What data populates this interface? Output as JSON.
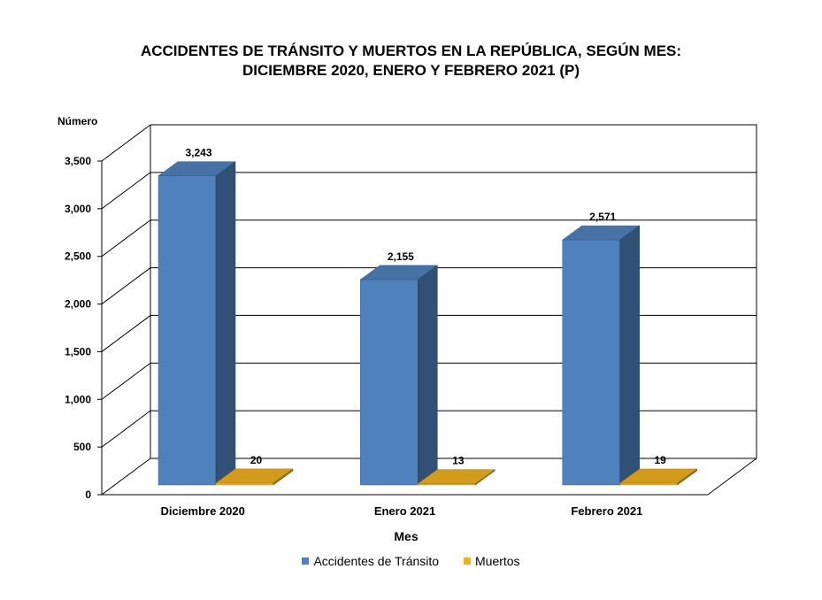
{
  "chart_data": {
    "type": "bar",
    "title_lines": [
      "ACCIDENTES DE TRÁNSITO Y MUERTOS EN LA REPÚBLICA, SEGÚN MES:",
      "DICIEMBRE 2020, ENERO Y FEBRERO 2021 (P)"
    ],
    "ylabel": "Número",
    "xlabel": "Mes",
    "categories": [
      "Diciembre 2020",
      "Enero 2021",
      "Febrero 2021"
    ],
    "series": [
      {
        "name": "Accidentes de Tránsito",
        "values": [
          3243,
          2155,
          2571
        ],
        "labels": [
          "3,243",
          "2,155",
          "2,571"
        ],
        "color": "#4F81BD"
      },
      {
        "name": "Muertos",
        "values": [
          20,
          13,
          19
        ],
        "labels": [
          "20",
          "13",
          "19"
        ],
        "color": "#F0B020"
      }
    ],
    "ylim": [
      0,
      3500
    ],
    "yticks": [
      0,
      500,
      1000,
      1500,
      2000,
      2500,
      3000,
      3500
    ],
    "ytick_labels": [
      "0",
      "500",
      "1,000",
      "1,500",
      "2,000",
      "2,500",
      "3,000",
      "3,500"
    ],
    "grid": true,
    "three_d": true,
    "legend_position": "bottom"
  }
}
